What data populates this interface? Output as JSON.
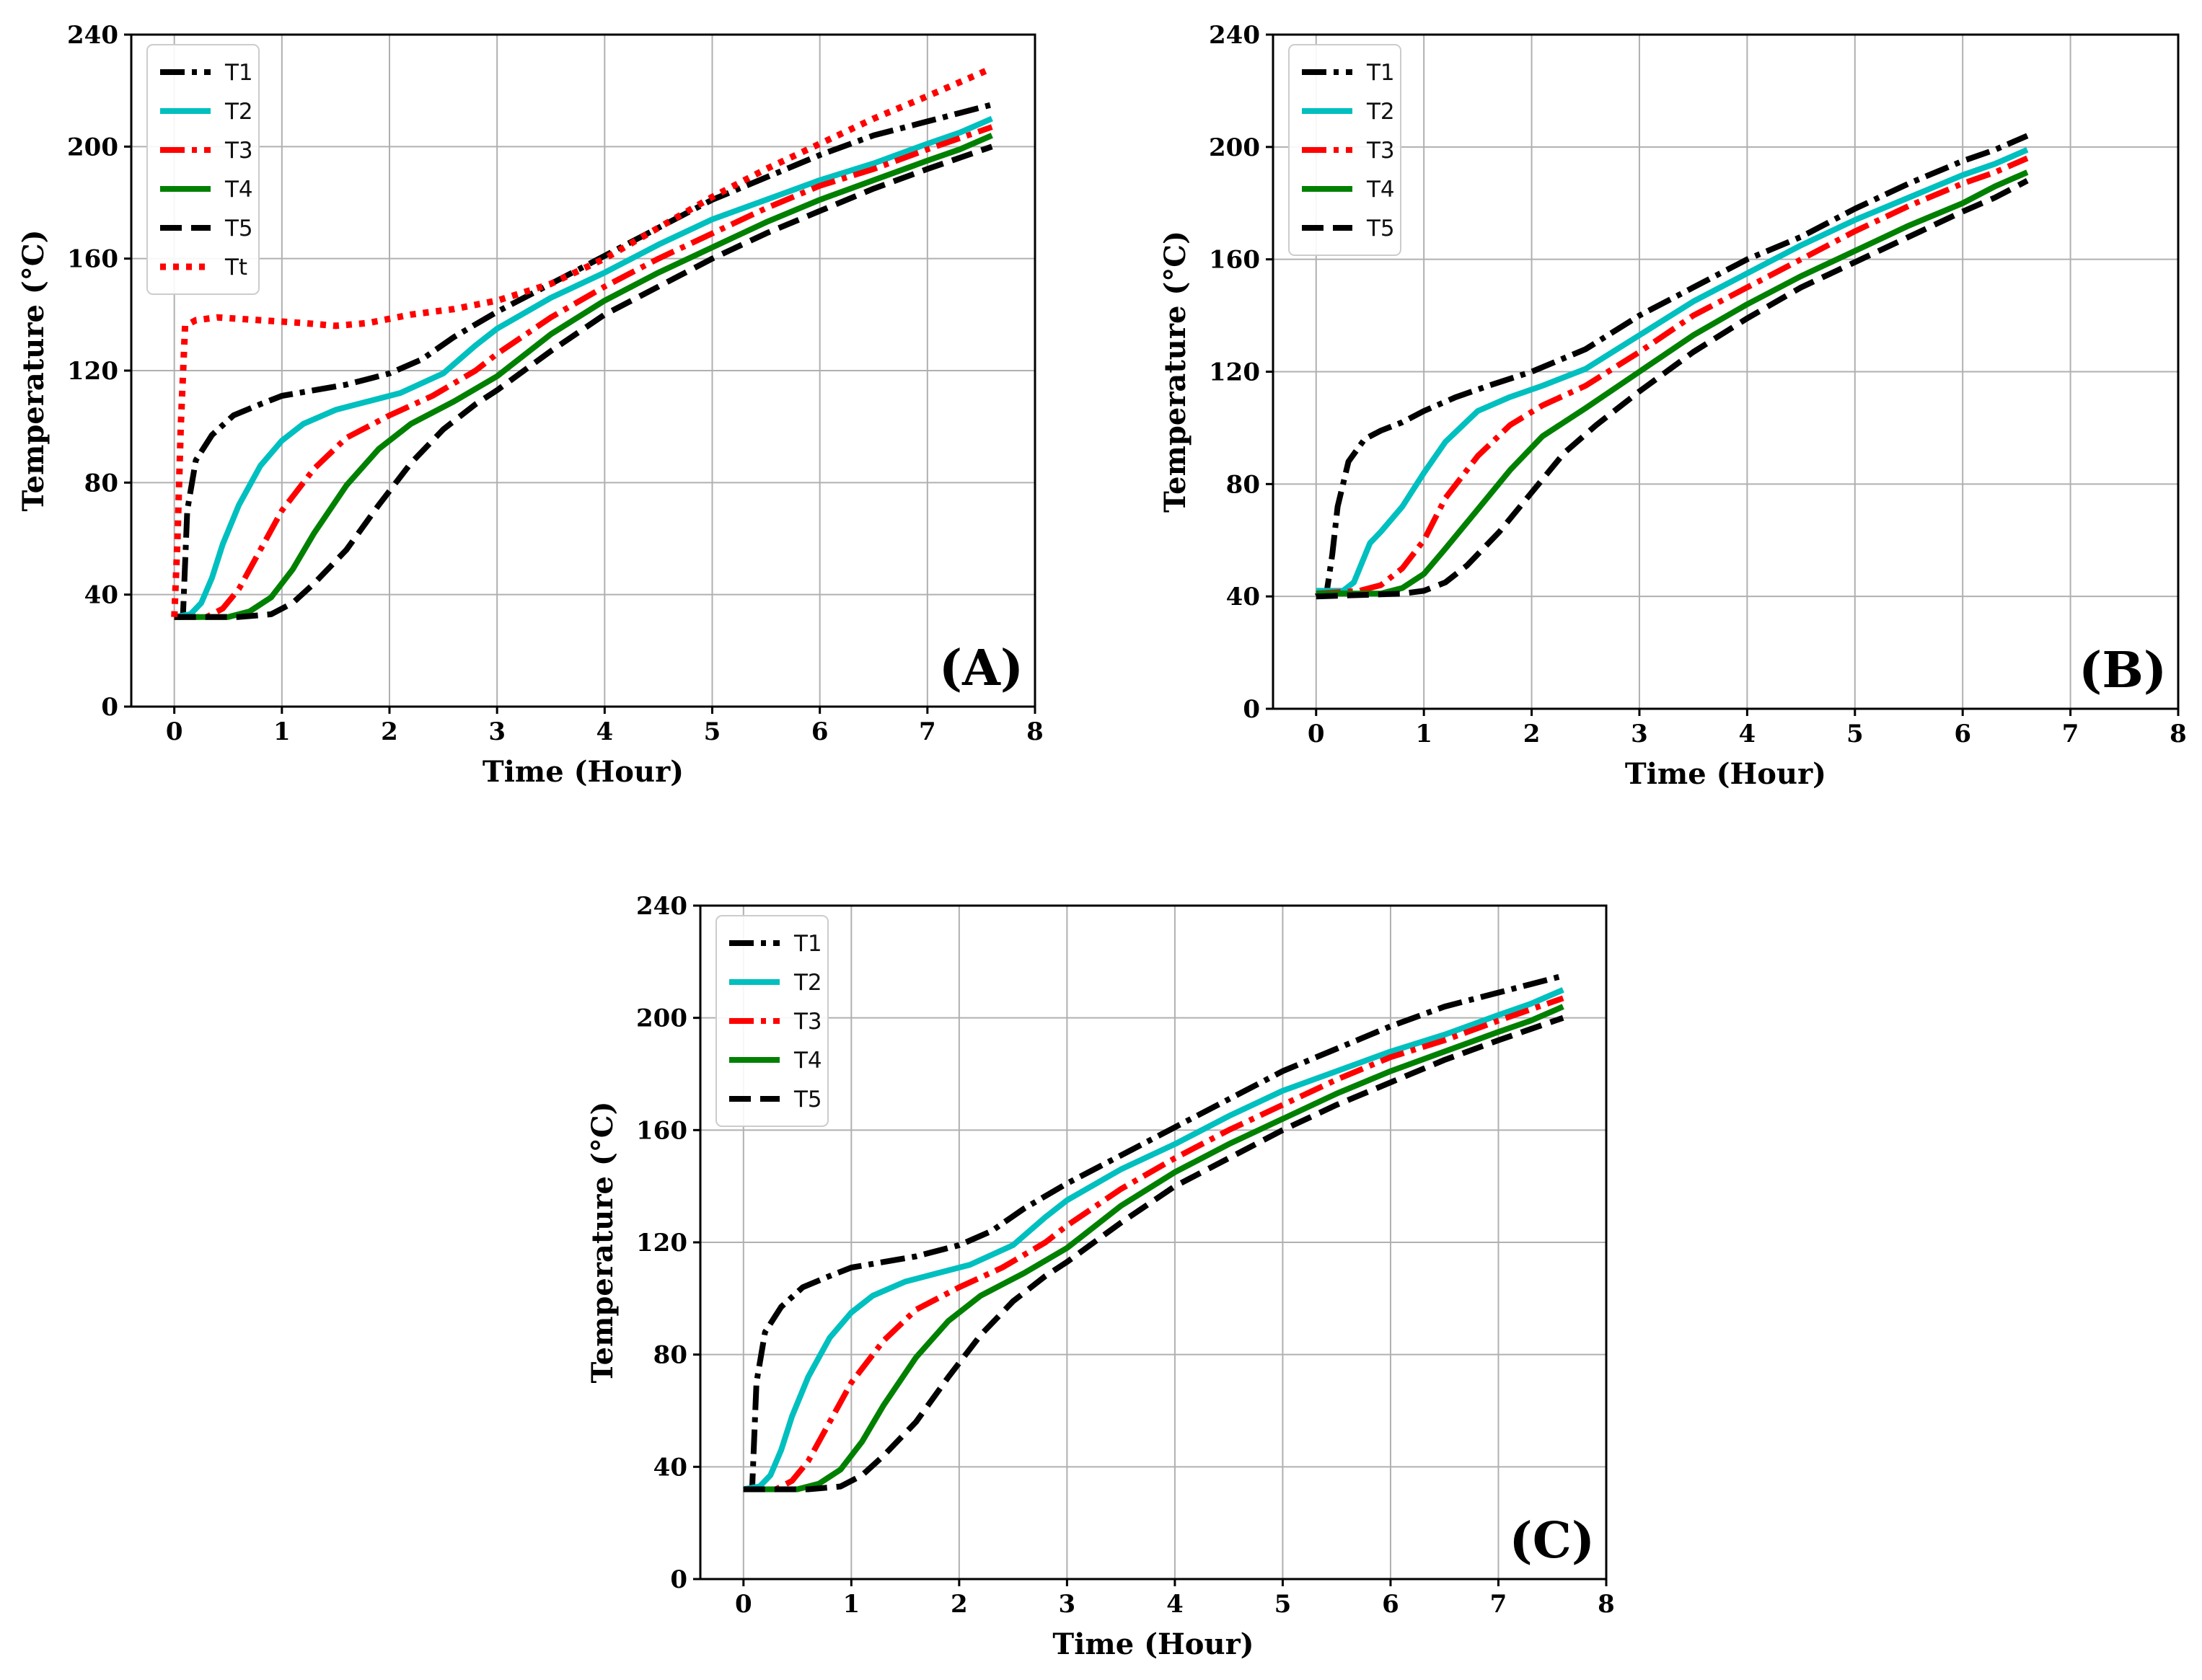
{
  "chart_data": [
    {
      "type": "line",
      "panel_label": "(A)",
      "xlabel": "Time (Hour)",
      "ylabel": "Temperature (°C)",
      "xlim": [
        -0.4,
        8
      ],
      "ylim": [
        0,
        240
      ],
      "xticks": [
        0,
        1,
        2,
        3,
        4,
        5,
        6,
        7,
        8
      ],
      "yticks": [
        0,
        40,
        80,
        120,
        160,
        200,
        240
      ],
      "grid": true,
      "legend_position": "top-left",
      "series": [
        {
          "name": "T1",
          "color": "#000000",
          "style": "dashdot",
          "x": [
            0,
            0.08,
            0.12,
            0.2,
            0.35,
            0.55,
            0.8,
            1.0,
            1.3,
            1.6,
            2.0,
            2.3,
            2.6,
            3.0,
            3.5,
            4.0,
            4.5,
            5.0,
            5.5,
            6.0,
            6.5,
            7.0,
            7.3,
            7.6
          ],
          "y": [
            32,
            32,
            70,
            88,
            97,
            104,
            108,
            111,
            113,
            115,
            119,
            124,
            132,
            141,
            151,
            161,
            171,
            181,
            189,
            197,
            204,
            209,
            212,
            215
          ]
        },
        {
          "name": "T2",
          "color": "#00bfbf",
          "style": "solid",
          "x": [
            0,
            0.15,
            0.25,
            0.35,
            0.45,
            0.6,
            0.8,
            1.0,
            1.2,
            1.5,
            1.8,
            2.1,
            2.5,
            2.8,
            3.0,
            3.5,
            4.0,
            4.5,
            5.0,
            5.5,
            6.0,
            6.5,
            7.0,
            7.3,
            7.6
          ],
          "y": [
            32,
            33,
            37,
            46,
            58,
            72,
            86,
            95,
            101,
            106,
            109,
            112,
            119,
            129,
            135,
            146,
            155,
            165,
            174,
            181,
            188,
            194,
            201,
            205,
            210
          ]
        },
        {
          "name": "T3",
          "color": "#ff0000",
          "style": "dashdot",
          "x": [
            0,
            0.3,
            0.45,
            0.6,
            0.8,
            1.0,
            1.3,
            1.6,
            2.0,
            2.4,
            2.8,
            3.0,
            3.5,
            4.0,
            4.5,
            5.0,
            5.5,
            6.0,
            6.5,
            7.0,
            7.3,
            7.6
          ],
          "y": [
            32,
            32,
            35,
            42,
            56,
            70,
            85,
            96,
            104,
            111,
            120,
            126,
            139,
            150,
            160,
            169,
            178,
            186,
            192,
            199,
            203,
            207
          ]
        },
        {
          "name": "T4",
          "color": "#008000",
          "style": "solid",
          "x": [
            0,
            0.5,
            0.7,
            0.9,
            1.1,
            1.3,
            1.6,
            1.9,
            2.2,
            2.6,
            3.0,
            3.5,
            4.0,
            4.5,
            5.0,
            5.5,
            6.0,
            6.5,
            7.0,
            7.3,
            7.6
          ],
          "y": [
            32,
            32,
            34,
            39,
            49,
            62,
            79,
            92,
            101,
            109,
            118,
            133,
            145,
            155,
            164,
            173,
            181,
            188,
            195,
            199,
            204
          ]
        },
        {
          "name": "T5",
          "color": "#000000",
          "style": "dashed",
          "x": [
            0,
            0.6,
            0.9,
            1.1,
            1.3,
            1.6,
            1.9,
            2.2,
            2.5,
            2.8,
            3.0,
            3.5,
            4.0,
            4.5,
            5.0,
            5.5,
            6.0,
            6.5,
            7.0,
            7.3,
            7.6
          ],
          "y": [
            32,
            32,
            33,
            37,
            44,
            56,
            72,
            87,
            99,
            108,
            113,
            127,
            140,
            150,
            160,
            169,
            177,
            185,
            192,
            196,
            200
          ]
        },
        {
          "name": "Tt",
          "color": "#ff0000",
          "style": "dotted",
          "x": [
            0,
            0.03,
            0.06,
            0.1,
            0.2,
            0.4,
            0.8,
            1.2,
            1.5,
            1.8,
            2.2,
            2.6,
            3.0,
            3.5,
            4.0,
            4.5,
            5.0,
            5.5,
            6.0,
            6.5,
            7.0,
            7.3,
            7.6
          ],
          "y": [
            32,
            60,
            100,
            136,
            138,
            139,
            138,
            137,
            136,
            137,
            140,
            142,
            145,
            151,
            160,
            171,
            182,
            192,
            201,
            210,
            218,
            223,
            228
          ]
        }
      ]
    },
    {
      "type": "line",
      "panel_label": "(B)",
      "xlabel": "Time (Hour)",
      "ylabel": "Temperature (°C)",
      "xlim": [
        -0.4,
        8
      ],
      "ylim": [
        0,
        240
      ],
      "xticks": [
        0,
        1,
        2,
        3,
        4,
        5,
        6,
        7,
        8
      ],
      "yticks": [
        0,
        40,
        80,
        120,
        160,
        200,
        240
      ],
      "grid": true,
      "legend_position": "top-left",
      "series": [
        {
          "name": "T1",
          "color": "#000000",
          "style": "dashdot",
          "x": [
            0,
            0.1,
            0.15,
            0.2,
            0.3,
            0.45,
            0.6,
            0.8,
            1.0,
            1.3,
            1.6,
            2.0,
            2.5,
            3.0,
            3.5,
            4.0,
            4.5,
            5.0,
            5.5,
            6.0,
            6.3,
            6.6
          ],
          "y": [
            40,
            42,
            55,
            72,
            88,
            96,
            99,
            102,
            106,
            111,
            115,
            120,
            128,
            140,
            150,
            160,
            168,
            178,
            187,
            195,
            199,
            204
          ]
        },
        {
          "name": "T2",
          "color": "#00bfbf",
          "style": "solid",
          "x": [
            0,
            0.25,
            0.35,
            0.5,
            0.6,
            0.8,
            1.0,
            1.2,
            1.5,
            1.8,
            2.1,
            2.5,
            3.0,
            3.5,
            4.0,
            4.5,
            5.0,
            5.5,
            6.0,
            6.3,
            6.6
          ],
          "y": [
            42,
            42,
            45,
            59,
            63,
            72,
            84,
            95,
            106,
            111,
            115,
            121,
            133,
            145,
            155,
            165,
            174,
            182,
            190,
            194,
            199
          ]
        },
        {
          "name": "T3",
          "color": "#ff0000",
          "style": "dashdot",
          "x": [
            0,
            0.4,
            0.6,
            0.8,
            1.0,
            1.2,
            1.5,
            1.8,
            2.1,
            2.5,
            3.0,
            3.5,
            4.0,
            4.5,
            5.0,
            5.5,
            6.0,
            6.3,
            6.6
          ],
          "y": [
            41,
            42,
            44,
            50,
            60,
            75,
            90,
            101,
            108,
            115,
            127,
            140,
            150,
            160,
            170,
            179,
            187,
            191,
            196
          ]
        },
        {
          "name": "T4",
          "color": "#008000",
          "style": "solid",
          "x": [
            0,
            0.6,
            0.8,
            1.0,
            1.2,
            1.5,
            1.8,
            2.1,
            2.5,
            3.0,
            3.5,
            4.0,
            4.5,
            5.0,
            5.5,
            6.0,
            6.3,
            6.6
          ],
          "y": [
            41,
            41,
            43,
            48,
            57,
            71,
            85,
            97,
            107,
            120,
            133,
            144,
            154,
            163,
            172,
            180,
            186,
            191
          ]
        },
        {
          "name": "T5",
          "color": "#000000",
          "style": "dashed",
          "x": [
            0,
            0.8,
            1.0,
            1.2,
            1.4,
            1.7,
            2.0,
            2.3,
            2.6,
            3.0,
            3.5,
            4.0,
            4.5,
            5.0,
            5.5,
            6.0,
            6.3,
            6.6
          ],
          "y": [
            40,
            41,
            42,
            45,
            51,
            63,
            77,
            91,
            101,
            113,
            127,
            139,
            150,
            159,
            168,
            177,
            182,
            188
          ]
        }
      ]
    },
    {
      "type": "line",
      "panel_label": "(C)",
      "xlabel": "Time (Hour)",
      "ylabel": "Temperature (°C)",
      "xlim": [
        -0.4,
        8
      ],
      "ylim": [
        0,
        240
      ],
      "xticks": [
        0,
        1,
        2,
        3,
        4,
        5,
        6,
        7,
        8
      ],
      "yticks": [
        0,
        40,
        80,
        120,
        160,
        200,
        240
      ],
      "grid": true,
      "legend_position": "top-left",
      "series": [
        {
          "name": "T1",
          "color": "#000000",
          "style": "dashdot",
          "x": [
            0,
            0.08,
            0.12,
            0.2,
            0.35,
            0.55,
            0.8,
            1.0,
            1.3,
            1.6,
            2.0,
            2.3,
            2.6,
            3.0,
            3.5,
            4.0,
            4.5,
            5.0,
            5.5,
            6.0,
            6.5,
            7.0,
            7.3,
            7.6
          ],
          "y": [
            32,
            32,
            70,
            88,
            97,
            104,
            108,
            111,
            113,
            115,
            119,
            124,
            132,
            141,
            151,
            161,
            171,
            181,
            189,
            197,
            204,
            209,
            212,
            215
          ]
        },
        {
          "name": "T2",
          "color": "#00bfbf",
          "style": "solid",
          "x": [
            0,
            0.15,
            0.25,
            0.35,
            0.45,
            0.6,
            0.8,
            1.0,
            1.2,
            1.5,
            1.8,
            2.1,
            2.5,
            2.8,
            3.0,
            3.5,
            4.0,
            4.5,
            5.0,
            5.5,
            6.0,
            6.5,
            7.0,
            7.3,
            7.6
          ],
          "y": [
            32,
            33,
            37,
            46,
            58,
            72,
            86,
            95,
            101,
            106,
            109,
            112,
            119,
            129,
            135,
            146,
            155,
            165,
            174,
            181,
            188,
            194,
            201,
            205,
            210
          ]
        },
        {
          "name": "T3",
          "color": "#ff0000",
          "style": "dashdot",
          "x": [
            0,
            0.3,
            0.45,
            0.6,
            0.8,
            1.0,
            1.3,
            1.6,
            2.0,
            2.4,
            2.8,
            3.0,
            3.5,
            4.0,
            4.5,
            5.0,
            5.5,
            6.0,
            6.5,
            7.0,
            7.3,
            7.6
          ],
          "y": [
            32,
            32,
            35,
            42,
            56,
            70,
            85,
            96,
            104,
            111,
            120,
            126,
            139,
            150,
            160,
            169,
            178,
            186,
            192,
            199,
            203,
            207
          ]
        },
        {
          "name": "T4",
          "color": "#008000",
          "style": "solid",
          "x": [
            0,
            0.5,
            0.7,
            0.9,
            1.1,
            1.3,
            1.6,
            1.9,
            2.2,
            2.6,
            3.0,
            3.5,
            4.0,
            4.5,
            5.0,
            5.5,
            6.0,
            6.5,
            7.0,
            7.3,
            7.6
          ],
          "y": [
            32,
            32,
            34,
            39,
            49,
            62,
            79,
            92,
            101,
            109,
            118,
            133,
            145,
            155,
            164,
            173,
            181,
            188,
            195,
            199,
            204
          ]
        },
        {
          "name": "T5",
          "color": "#000000",
          "style": "dashed",
          "x": [
            0,
            0.6,
            0.9,
            1.1,
            1.3,
            1.6,
            1.9,
            2.2,
            2.5,
            2.8,
            3.0,
            3.5,
            4.0,
            4.5,
            5.0,
            5.5,
            6.0,
            6.5,
            7.0,
            7.3,
            7.6
          ],
          "y": [
            32,
            32,
            33,
            37,
            44,
            56,
            72,
            87,
            99,
            108,
            113,
            127,
            140,
            150,
            160,
            169,
            177,
            185,
            192,
            196,
            200
          ]
        }
      ]
    }
  ]
}
